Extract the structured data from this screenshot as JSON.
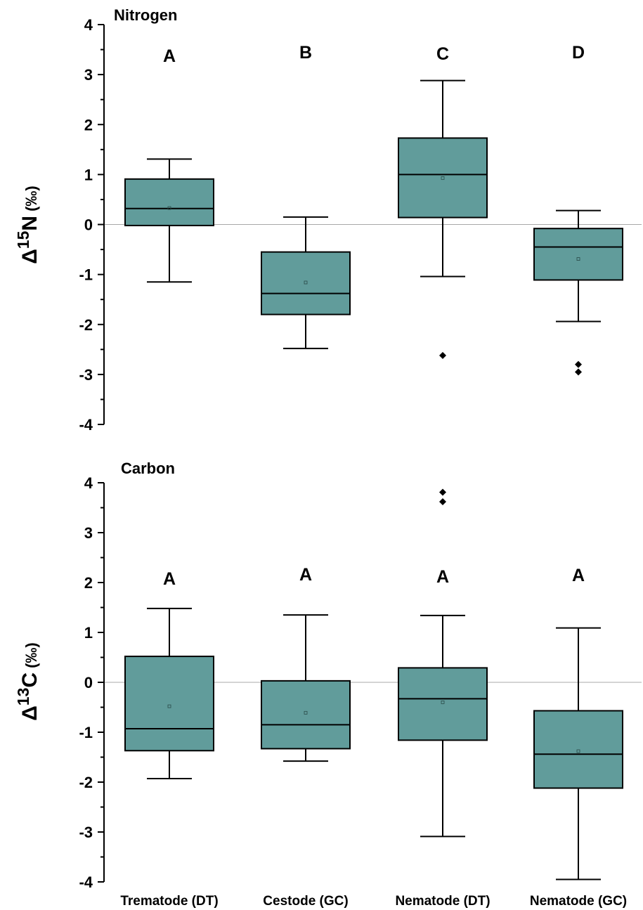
{
  "chart_data": [
    {
      "type": "box",
      "title": "Nitrogen",
      "ylabel": {
        "delta": "Δ",
        "isotope_number": "15",
        "element": "N",
        "unit": "(‰)"
      },
      "ylim": [
        -4,
        4
      ],
      "yticks": [
        -4,
        -3,
        -2,
        -1,
        0,
        1,
        2,
        3,
        4
      ],
      "categories": [
        "Trematode (DT)",
        "Cestode (GC)",
        "Nematode (DT)",
        "Nematode (GC)"
      ],
      "box_color": "#619c9b",
      "reference_line": 0,
      "grid": false,
      "boxes": [
        {
          "letter": "A",
          "whisker_low": -1.15,
          "q1": -0.02,
          "median": 0.32,
          "mean": 0.33,
          "q3": 0.91,
          "whisker_high": 1.31,
          "outliers": []
        },
        {
          "letter": "B",
          "whisker_low": -2.48,
          "q1": -1.8,
          "median": -1.38,
          "mean": -1.16,
          "q3": -0.55,
          "whisker_high": 0.15,
          "outliers": []
        },
        {
          "letter": "C",
          "whisker_low": -1.04,
          "q1": 0.14,
          "median": 1.0,
          "mean": 0.93,
          "q3": 1.73,
          "whisker_high": 2.88,
          "outliers": [
            -2.62
          ]
        },
        {
          "letter": "D",
          "whisker_low": -1.94,
          "q1": -1.11,
          "median": -0.45,
          "mean": -0.69,
          "q3": -0.08,
          "whisker_high": 0.28,
          "outliers": [
            -2.8,
            -2.95
          ]
        }
      ]
    },
    {
      "type": "box",
      "title": "Carbon",
      "ylabel": {
        "delta": "Δ",
        "isotope_number": "13",
        "element": "C",
        "unit": "(‰)"
      },
      "ylim": [
        -4,
        4
      ],
      "yticks": [
        -4,
        -3,
        -2,
        -1,
        0,
        1,
        2,
        3,
        4
      ],
      "categories": [
        "Trematode (DT)",
        "Cestode (GC)",
        "Nematode (DT)",
        "Nematode (GC)"
      ],
      "box_color": "#619c9b",
      "reference_line": 0,
      "grid": false,
      "boxes": [
        {
          "letter": "A",
          "whisker_low": -1.93,
          "q1": -1.37,
          "median": -0.93,
          "mean": -0.48,
          "q3": 0.52,
          "whisker_high": 1.48,
          "outliers": []
        },
        {
          "letter": "A",
          "whisker_low": -1.58,
          "q1": -1.33,
          "median": -0.85,
          "mean": -0.61,
          "q3": 0.03,
          "whisker_high": 1.35,
          "outliers": []
        },
        {
          "letter": "A",
          "whisker_low": -3.09,
          "q1": -1.16,
          "median": -0.33,
          "mean": -0.4,
          "q3": 0.29,
          "whisker_high": 1.34,
          "outliers": [
            3.81,
            3.62
          ]
        },
        {
          "letter": "A",
          "whisker_low": -3.95,
          "q1": -2.12,
          "median": -1.44,
          "mean": -1.38,
          "q3": -0.57,
          "whisker_high": 1.09,
          "outliers": []
        }
      ]
    }
  ]
}
